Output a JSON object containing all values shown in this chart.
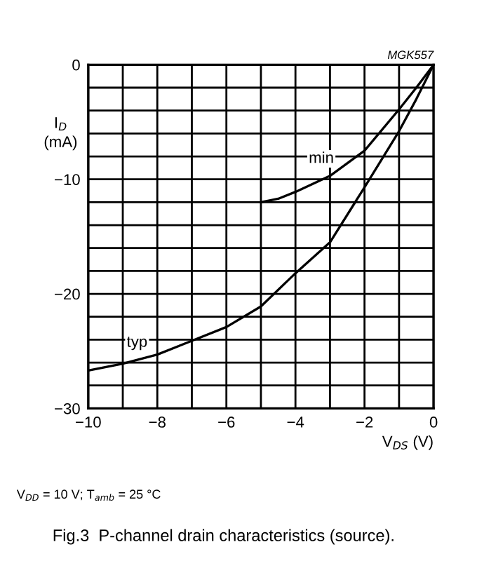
{
  "chart_data": {
    "type": "line",
    "title": "Fig.3  P-channel drain characteristics (source).",
    "xlabel": "V$_{DS}$ (V)",
    "ylabel": "I$_{D}$\n(mA)",
    "series": [
      {
        "name": "min",
        "color": "#000000",
        "x": [
          -5,
          -4.5,
          -4,
          -3,
          -2,
          -1,
          -0.5,
          0
        ],
        "values": [
          -12.0,
          -11.7,
          -11.1,
          -9.7,
          -7.5,
          -3.9,
          -2.0,
          0
        ]
      },
      {
        "name": "typ",
        "color": "#000000",
        "x": [
          -10,
          -9,
          -8,
          -7,
          -6,
          -5,
          -4,
          -3,
          -2,
          -1,
          -0.5,
          0
        ],
        "values": [
          -26.7,
          -26.1,
          -25.3,
          -24.1,
          -22.9,
          -21.1,
          -18.2,
          -15.5,
          -10.7,
          -5.8,
          -3.0,
          0
        ]
      }
    ],
    "annotations": [
      "MGK557",
      "V$_{DD}$ = 10 V; T$_{amb}$ = 25 °C"
    ],
    "xlim": [
      -10,
      0
    ],
    "ylim": [
      -30,
      0
    ],
    "xticks": [
      {
        "value": -10,
        "label": "−10"
      },
      {
        "value": -9,
        "label": null
      },
      {
        "value": -8,
        "label": "−8"
      },
      {
        "value": -7,
        "label": null
      },
      {
        "value": -6,
        "label": "−6"
      },
      {
        "value": -5,
        "label": null
      },
      {
        "value": -4,
        "label": "−4"
      },
      {
        "value": -3,
        "label": null
      },
      {
        "value": -2,
        "label": "−2"
      },
      {
        "value": -1,
        "label": null
      },
      0
    ],
    "yticks": [
      {
        "value": -30,
        "label": "−30"
      },
      {
        "value": -28,
        "label": null
      },
      {
        "value": -26,
        "label": null
      },
      {
        "value": -24,
        "label": null
      },
      {
        "value": -22,
        "label": null
      },
      {
        "value": -20,
        "label": "−20"
      },
      {
        "value": -18,
        "label": null
      },
      {
        "value": -16,
        "label": null
      },
      {
        "value": -14,
        "label": null
      },
      {
        "value": -12,
        "label": null
      },
      {
        "value": -10,
        "label": "−10"
      },
      {
        "value": -8,
        "label": null
      },
      {
        "value": -6,
        "label": null
      },
      {
        "value": -4,
        "label": null
      },
      {
        "value": -2,
        "label": null
      },
      0
    ],
    "grid": true,
    "marker": "none",
    "line_style": "solid"
  }
}
